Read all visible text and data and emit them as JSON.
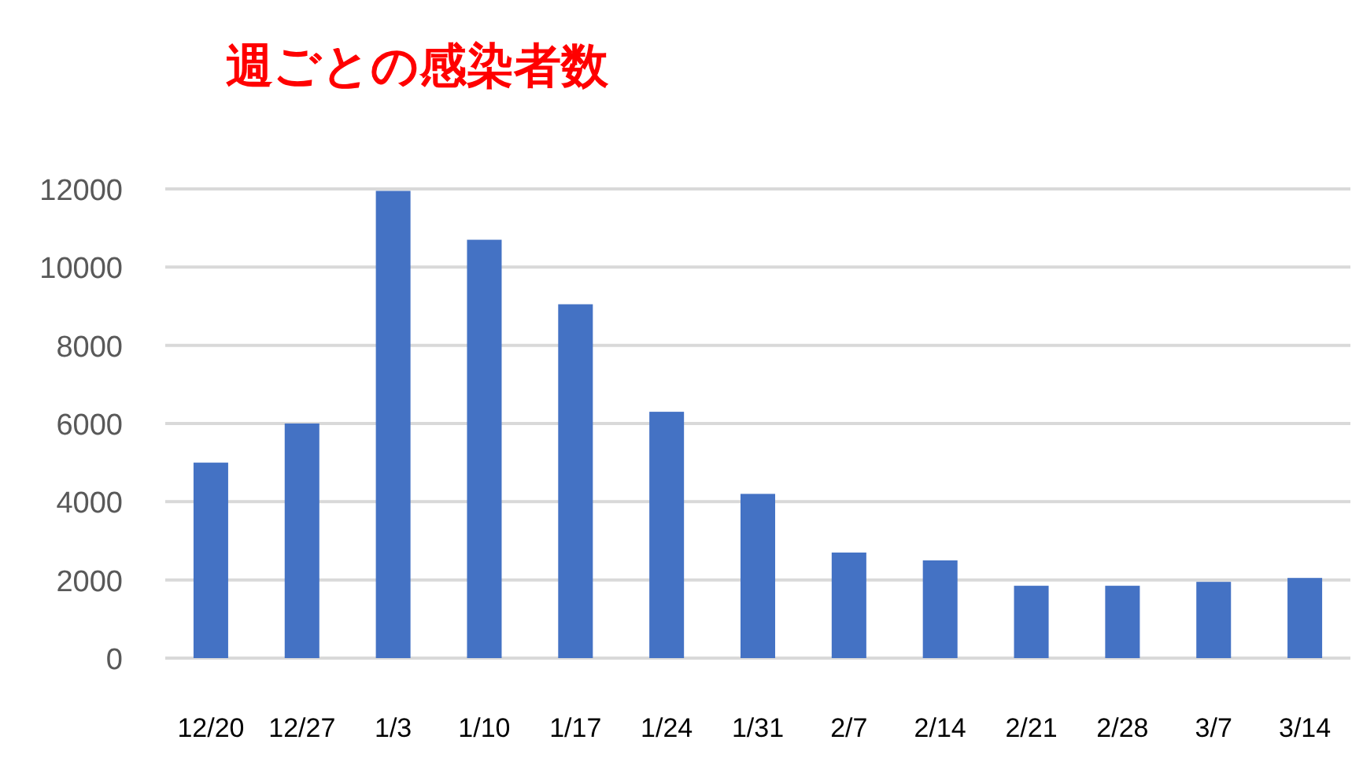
{
  "chart_data": {
    "type": "bar",
    "title": "週ごとの感染者数",
    "categories": [
      "12/20",
      "12/27",
      "1/3",
      "1/10",
      "1/17",
      "1/24",
      "1/31",
      "2/7",
      "2/14",
      "2/21",
      "2/28",
      "3/7",
      "3/14"
    ],
    "values": [
      5000,
      6000,
      11950,
      10700,
      9050,
      6300,
      4200,
      2700,
      2500,
      1850,
      1850,
      1950,
      2050
    ],
    "color": "#4472c4",
    "ylim": [
      0,
      12000
    ],
    "yticks": [
      0,
      2000,
      4000,
      6000,
      8000,
      10000,
      12000
    ],
    "grid": "y"
  }
}
